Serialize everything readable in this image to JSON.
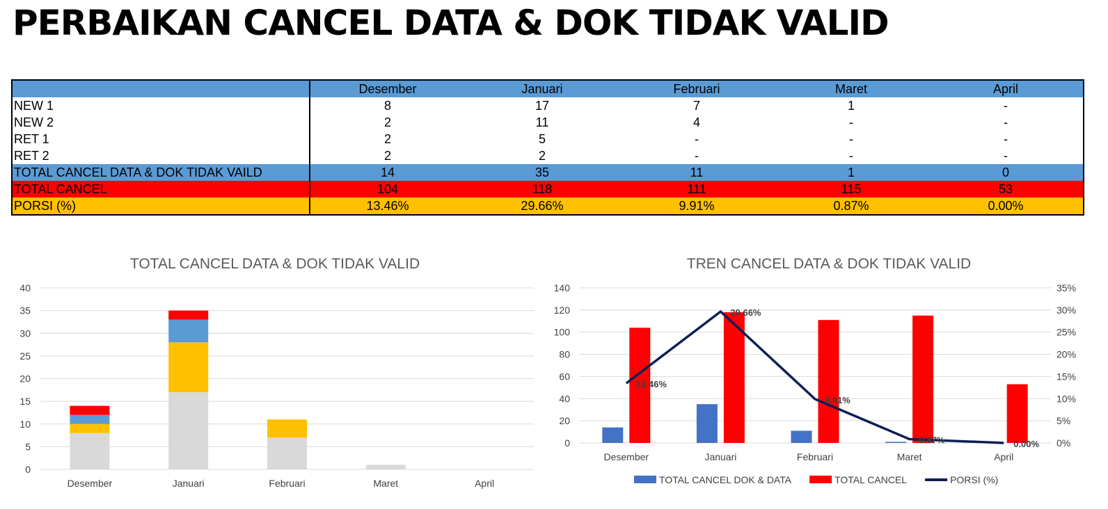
{
  "page_title": "PERBAIKAN CANCEL DATA & DOK TIDAK VALID",
  "table": {
    "columns": [
      "",
      "Desember",
      "Januari",
      "Februari",
      "Maret",
      "April"
    ],
    "rows": [
      {
        "label": "NEW 1",
        "values": [
          "8",
          "17",
          "7",
          "1",
          "-"
        ],
        "style": "plain"
      },
      {
        "label": "NEW 2",
        "values": [
          "2",
          "11",
          "4",
          "-",
          "-"
        ],
        "style": "plain"
      },
      {
        "label": "RET 1",
        "values": [
          "2",
          "5",
          "-",
          "-",
          "-"
        ],
        "style": "plain"
      },
      {
        "label": "RET 2",
        "values": [
          "2",
          "2",
          "-",
          "-",
          "-"
        ],
        "style": "plain"
      },
      {
        "label": "TOTAL CANCEL DATA & DOK TIDAK VAILD",
        "values": [
          "14",
          "35",
          "11",
          "1",
          "0"
        ],
        "style": "tot"
      },
      {
        "label": "TOTAL CANCEL",
        "values": [
          "104",
          "118",
          "111",
          "115",
          "53"
        ],
        "style": "cancel"
      },
      {
        "label": "PORSI (%)",
        "values": [
          "13.46%",
          "29.66%",
          "9.91%",
          "0.87%",
          "0.00%"
        ],
        "style": "porsi"
      }
    ]
  },
  "chart_data": [
    {
      "type": "bar",
      "stacked": true,
      "title": "TOTAL CANCEL DATA & DOK TIDAK VALID",
      "categories": [
        "Desember",
        "Januari",
        "Februari",
        "Maret",
        "April"
      ],
      "series": [
        {
          "values": [
            8,
            17,
            7,
            1,
            0
          ],
          "color": "#d9d9d9"
        },
        {
          "values": [
            2,
            11,
            4,
            0,
            0
          ],
          "color": "#ffc000"
        },
        {
          "values": [
            2,
            5,
            0,
            0,
            0
          ],
          "color": "#5b9bd5"
        },
        {
          "values": [
            2,
            2,
            0,
            0,
            0
          ],
          "color": "#ff0000"
        }
      ],
      "ylim": [
        0,
        40
      ],
      "yticks": [
        "0",
        "5",
        "10",
        "15",
        "20",
        "25",
        "30",
        "35",
        "40"
      ],
      "grid": true,
      "legend": "none"
    },
    {
      "type": "bar",
      "title": "TREN CANCEL DATA & DOK TIDAK VALID",
      "categories": [
        "Desember",
        "Januari",
        "Februari",
        "Maret",
        "April"
      ],
      "series": [
        {
          "name": "TOTAL CANCEL DOK & DATA",
          "type": "bar",
          "axis": "left",
          "values": [
            14,
            35,
            11,
            1,
            0
          ],
          "color": "#4472c4"
        },
        {
          "name": "TOTAL CANCEL",
          "type": "bar",
          "axis": "left",
          "values": [
            104,
            118,
            111,
            115,
            53
          ],
          "color": "#ff0000"
        },
        {
          "name": "PORSI (%)",
          "type": "line",
          "axis": "right",
          "values": [
            13.46,
            29.66,
            9.91,
            0.87,
            0.0
          ],
          "labels": [
            "13.46%",
            "29.66%",
            "9.91%",
            "0.87%",
            "0.00%"
          ],
          "color": "#0e1f56"
        }
      ],
      "ylim": [
        0,
        140
      ],
      "yticks": [
        "0",
        "20",
        "40",
        "60",
        "80",
        "100",
        "120",
        "140"
      ],
      "y2lim": [
        0,
        35
      ],
      "y2ticks": [
        "0%",
        "5%",
        "10%",
        "15%",
        "20%",
        "25%",
        "30%",
        "35%"
      ],
      "grid": true,
      "legend": "bottom"
    }
  ]
}
